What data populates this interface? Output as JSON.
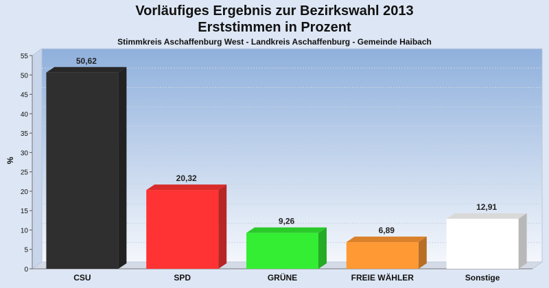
{
  "chart_data": {
    "type": "bar",
    "title": "Vorläufiges Ergebnis zur Bezirkswahl 2013",
    "subtitle": "Erststimmen in Prozent",
    "caption": "Stimmkreis Aschaffenburg West - Landkreis Aschaffenburg - Gemeinde Haibach",
    "ylabel": "%",
    "xlabel": "",
    "ylim": [
      0,
      55
    ],
    "yticks": [
      0,
      5,
      10,
      15,
      20,
      25,
      30,
      35,
      40,
      45,
      50,
      55
    ],
    "grid": true,
    "categories": [
      "CSU",
      "SPD",
      "GRÜNE",
      "FREIE WÄHLER",
      "Sonstige"
    ],
    "values": [
      50.62,
      20.32,
      9.26,
      6.89,
      12.91
    ],
    "value_labels": [
      "50,62",
      "20,32",
      "9,26",
      "6,89",
      "12,91"
    ],
    "colors": [
      "#2f2f2f",
      "#ff3333",
      "#33ee33",
      "#ff9933",
      "#ffffff"
    ]
  }
}
